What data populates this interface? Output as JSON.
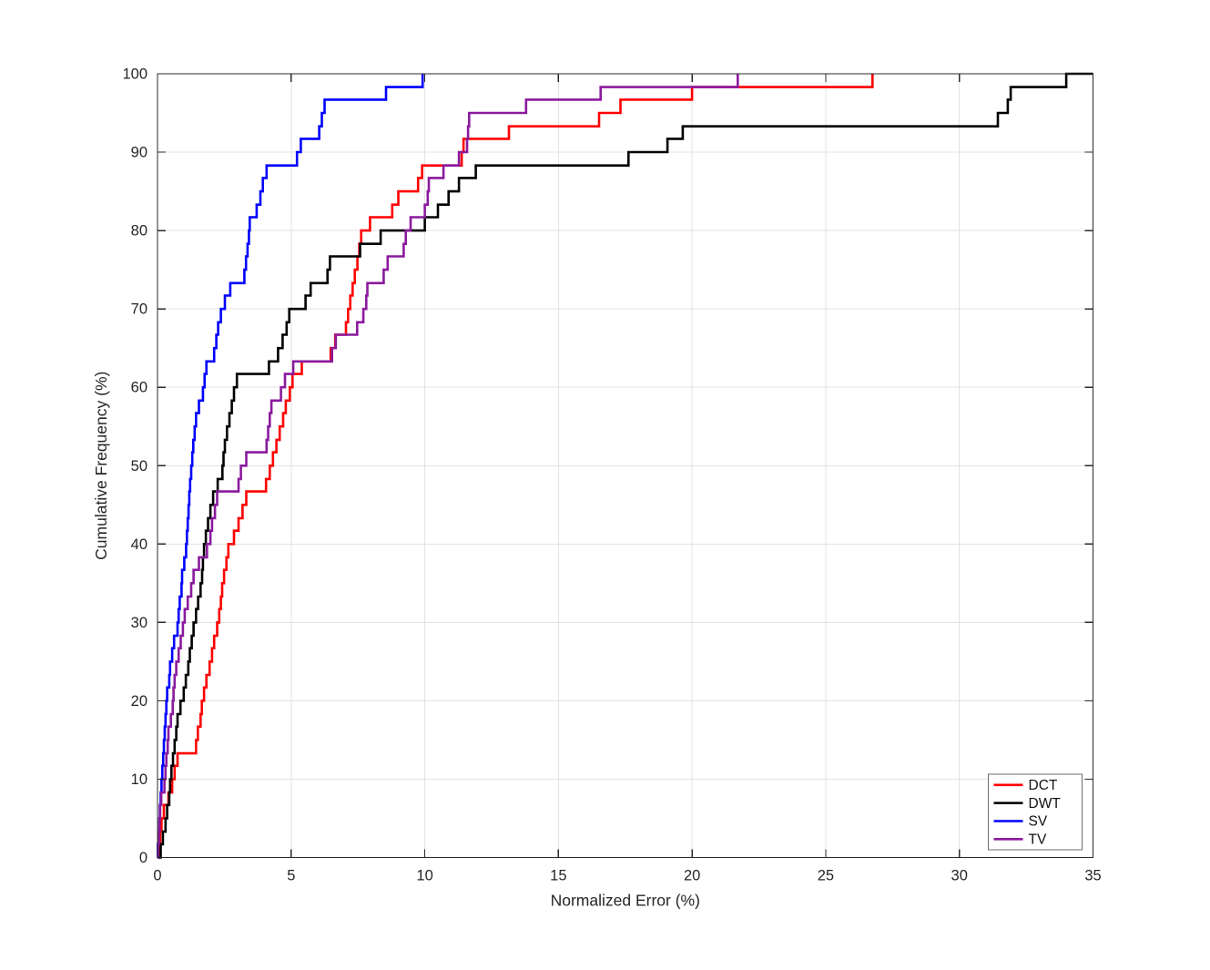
{
  "figure": {
    "background": "#ffffff"
  },
  "chart_data": {
    "type": "line",
    "subtype": "step-cdf",
    "title": "",
    "xlabel": "Normalized Error (%)",
    "ylabel": "Cumulative Frequency (%)",
    "xlim": [
      0,
      35
    ],
    "ylim": [
      0,
      100
    ],
    "xticks": [
      0,
      5,
      10,
      15,
      20,
      25,
      30,
      35
    ],
    "yticks": [
      0,
      10,
      20,
      30,
      40,
      50,
      60,
      70,
      80,
      90,
      100
    ],
    "grid": true,
    "axis_color": "#2b2b2b",
    "grid_color": "#e3e3e3",
    "legend": {
      "position": "lower right",
      "entries": [
        {
          "label": "DCT",
          "color": "#ff0000"
        },
        {
          "label": "DWT",
          "color": "#000000"
        },
        {
          "label": "SV",
          "color": "#0000ff"
        },
        {
          "label": "TV",
          "color": "#8b1a9e"
        }
      ]
    },
    "series": [
      {
        "name": "DCT",
        "color": "#ff0000",
        "points": [
          [
            0,
            0
          ],
          [
            0.07,
            1.7
          ],
          [
            0.1,
            3.3
          ],
          [
            0.15,
            5
          ],
          [
            0.24,
            6.7
          ],
          [
            0.41,
            8.3
          ],
          [
            0.55,
            10
          ],
          [
            0.64,
            11.7
          ],
          [
            0.75,
            13.3
          ],
          [
            1.44,
            15
          ],
          [
            1.51,
            16.7
          ],
          [
            1.61,
            18.3
          ],
          [
            1.66,
            20
          ],
          [
            1.74,
            21.7
          ],
          [
            1.83,
            23.3
          ],
          [
            1.95,
            25
          ],
          [
            2.04,
            26.7
          ],
          [
            2.12,
            28.3
          ],
          [
            2.23,
            30
          ],
          [
            2.31,
            31.7
          ],
          [
            2.37,
            33.3
          ],
          [
            2.42,
            35
          ],
          [
            2.49,
            36.7
          ],
          [
            2.58,
            38.3
          ],
          [
            2.65,
            40
          ],
          [
            2.86,
            41.7
          ],
          [
            3.03,
            43.3
          ],
          [
            3.18,
            45
          ],
          [
            3.32,
            46.7
          ],
          [
            4.06,
            48.3
          ],
          [
            4.2,
            50
          ],
          [
            4.32,
            51.7
          ],
          [
            4.45,
            53.3
          ],
          [
            4.57,
            55
          ],
          [
            4.7,
            56.7
          ],
          [
            4.8,
            58.3
          ],
          [
            4.95,
            60
          ],
          [
            5.05,
            61.7
          ],
          [
            5.4,
            63.3
          ],
          [
            6.48,
            65
          ],
          [
            6.65,
            66.7
          ],
          [
            7.05,
            68.3
          ],
          [
            7.13,
            70
          ],
          [
            7.21,
            71.7
          ],
          [
            7.3,
            73.3
          ],
          [
            7.38,
            75
          ],
          [
            7.48,
            76.7
          ],
          [
            7.55,
            78.3
          ],
          [
            7.62,
            80
          ],
          [
            7.95,
            81.7
          ],
          [
            8.78,
            83.3
          ],
          [
            9.01,
            85
          ],
          [
            9.75,
            86.7
          ],
          [
            9.9,
            88.3
          ],
          [
            11.38,
            90
          ],
          [
            11.45,
            91.7
          ],
          [
            13.15,
            93.3
          ],
          [
            16.52,
            95
          ],
          [
            17.32,
            96.7
          ],
          [
            20.0,
            98.3
          ],
          [
            26.75,
            100
          ]
        ]
      },
      {
        "name": "DWT",
        "color": "#000000",
        "points": [
          [
            0,
            0
          ],
          [
            0.12,
            1.7
          ],
          [
            0.2,
            3.3
          ],
          [
            0.3,
            5
          ],
          [
            0.36,
            6.7
          ],
          [
            0.44,
            8.3
          ],
          [
            0.47,
            10
          ],
          [
            0.52,
            11.7
          ],
          [
            0.58,
            13.3
          ],
          [
            0.64,
            15
          ],
          [
            0.7,
            16.7
          ],
          [
            0.75,
            18.3
          ],
          [
            0.86,
            20
          ],
          [
            0.98,
            21.7
          ],
          [
            1.06,
            23.3
          ],
          [
            1.15,
            25
          ],
          [
            1.21,
            26.7
          ],
          [
            1.28,
            28.3
          ],
          [
            1.35,
            30
          ],
          [
            1.44,
            31.7
          ],
          [
            1.52,
            33.3
          ],
          [
            1.61,
            35
          ],
          [
            1.67,
            36.7
          ],
          [
            1.7,
            38.3
          ],
          [
            1.74,
            40
          ],
          [
            1.81,
            41.7
          ],
          [
            1.89,
            43.3
          ],
          [
            1.98,
            45
          ],
          [
            2.08,
            46.7
          ],
          [
            2.25,
            48.3
          ],
          [
            2.43,
            50
          ],
          [
            2.47,
            51.7
          ],
          [
            2.52,
            53.3
          ],
          [
            2.6,
            55
          ],
          [
            2.69,
            56.7
          ],
          [
            2.78,
            58.3
          ],
          [
            2.86,
            60
          ],
          [
            2.97,
            61.7
          ],
          [
            4.17,
            63.3
          ],
          [
            4.51,
            65
          ],
          [
            4.68,
            66.7
          ],
          [
            4.83,
            68.3
          ],
          [
            4.93,
            70
          ],
          [
            5.54,
            71.7
          ],
          [
            5.73,
            73.3
          ],
          [
            6.36,
            75
          ],
          [
            6.45,
            76.7
          ],
          [
            7.58,
            78.3
          ],
          [
            8.35,
            80
          ],
          [
            10.0,
            81.7
          ],
          [
            10.49,
            83.3
          ],
          [
            10.89,
            85
          ],
          [
            11.28,
            86.7
          ],
          [
            11.91,
            88.3
          ],
          [
            17.62,
            90
          ],
          [
            19.08,
            91.7
          ],
          [
            19.65,
            93.3
          ],
          [
            31.44,
            95
          ],
          [
            31.81,
            96.7
          ],
          [
            31.92,
            98.3
          ],
          [
            34.0,
            100
          ],
          [
            35.0,
            100
          ]
        ]
      },
      {
        "name": "SV",
        "color": "#0000ff",
        "points": [
          [
            0,
            0
          ],
          [
            0.01,
            1.7
          ],
          [
            0.03,
            3.3
          ],
          [
            0.07,
            5
          ],
          [
            0.09,
            6.7
          ],
          [
            0.12,
            8.3
          ],
          [
            0.15,
            10
          ],
          [
            0.18,
            11.7
          ],
          [
            0.21,
            13.3
          ],
          [
            0.24,
            15
          ],
          [
            0.27,
            16.7
          ],
          [
            0.3,
            18.3
          ],
          [
            0.33,
            20
          ],
          [
            0.36,
            21.7
          ],
          [
            0.44,
            23.3
          ],
          [
            0.47,
            25
          ],
          [
            0.55,
            26.7
          ],
          [
            0.62,
            28.3
          ],
          [
            0.75,
            30
          ],
          [
            0.79,
            31.7
          ],
          [
            0.83,
            33.3
          ],
          [
            0.9,
            35
          ],
          [
            0.92,
            36.7
          ],
          [
            1.0,
            38.3
          ],
          [
            1.07,
            40
          ],
          [
            1.1,
            41.7
          ],
          [
            1.13,
            43.3
          ],
          [
            1.16,
            45
          ],
          [
            1.19,
            46.7
          ],
          [
            1.22,
            48.3
          ],
          [
            1.26,
            50
          ],
          [
            1.3,
            51.7
          ],
          [
            1.34,
            53.3
          ],
          [
            1.39,
            55
          ],
          [
            1.44,
            56.7
          ],
          [
            1.55,
            58.3
          ],
          [
            1.7,
            60
          ],
          [
            1.76,
            61.7
          ],
          [
            1.83,
            63.3
          ],
          [
            2.12,
            65
          ],
          [
            2.2,
            66.7
          ],
          [
            2.27,
            68.3
          ],
          [
            2.37,
            70
          ],
          [
            2.52,
            71.7
          ],
          [
            2.72,
            73.3
          ],
          [
            3.25,
            75
          ],
          [
            3.31,
            76.7
          ],
          [
            3.37,
            78.3
          ],
          [
            3.42,
            80
          ],
          [
            3.45,
            81.7
          ],
          [
            3.71,
            83.3
          ],
          [
            3.85,
            85
          ],
          [
            3.94,
            86.7
          ],
          [
            4.08,
            88.3
          ],
          [
            5.22,
            90
          ],
          [
            5.36,
            91.7
          ],
          [
            6.05,
            93.3
          ],
          [
            6.15,
            95
          ],
          [
            6.25,
            96.7
          ],
          [
            8.55,
            98.3
          ],
          [
            9.92,
            100
          ]
        ]
      },
      {
        "name": "TV",
        "color": "#8b1a9e",
        "points": [
          [
            0,
            0
          ],
          [
            0.02,
            1.7
          ],
          [
            0.05,
            3.3
          ],
          [
            0.07,
            5
          ],
          [
            0.1,
            6.7
          ],
          [
            0.14,
            8.3
          ],
          [
            0.26,
            10
          ],
          [
            0.3,
            11.7
          ],
          [
            0.33,
            13.3
          ],
          [
            0.38,
            15
          ],
          [
            0.41,
            16.7
          ],
          [
            0.5,
            18.3
          ],
          [
            0.57,
            20
          ],
          [
            0.6,
            21.7
          ],
          [
            0.64,
            23.3
          ],
          [
            0.7,
            25
          ],
          [
            0.79,
            26.7
          ],
          [
            0.87,
            28.3
          ],
          [
            0.95,
            30
          ],
          [
            1.02,
            31.7
          ],
          [
            1.13,
            33.3
          ],
          [
            1.26,
            35
          ],
          [
            1.35,
            36.7
          ],
          [
            1.55,
            38.3
          ],
          [
            1.85,
            40
          ],
          [
            1.98,
            41.7
          ],
          [
            2.04,
            43.3
          ],
          [
            2.15,
            45
          ],
          [
            2.23,
            46.7
          ],
          [
            3.03,
            48.3
          ],
          [
            3.12,
            50
          ],
          [
            3.32,
            51.7
          ],
          [
            4.08,
            53.3
          ],
          [
            4.14,
            55
          ],
          [
            4.2,
            56.7
          ],
          [
            4.26,
            58.3
          ],
          [
            4.62,
            60
          ],
          [
            4.77,
            61.7
          ],
          [
            5.08,
            63.3
          ],
          [
            6.53,
            65
          ],
          [
            6.67,
            66.7
          ],
          [
            7.47,
            68.3
          ],
          [
            7.7,
            70
          ],
          [
            7.81,
            71.7
          ],
          [
            7.85,
            73.3
          ],
          [
            8.46,
            75
          ],
          [
            8.61,
            76.7
          ],
          [
            9.21,
            78.3
          ],
          [
            9.29,
            80
          ],
          [
            9.47,
            81.7
          ],
          [
            10.0,
            83.3
          ],
          [
            10.11,
            85
          ],
          [
            10.15,
            86.7
          ],
          [
            10.7,
            88.3
          ],
          [
            11.28,
            90
          ],
          [
            11.58,
            91.7
          ],
          [
            11.62,
            93.3
          ],
          [
            11.66,
            95
          ],
          [
            13.79,
            96.7
          ],
          [
            16.58,
            98.3
          ],
          [
            21.71,
            100
          ]
        ]
      }
    ]
  }
}
